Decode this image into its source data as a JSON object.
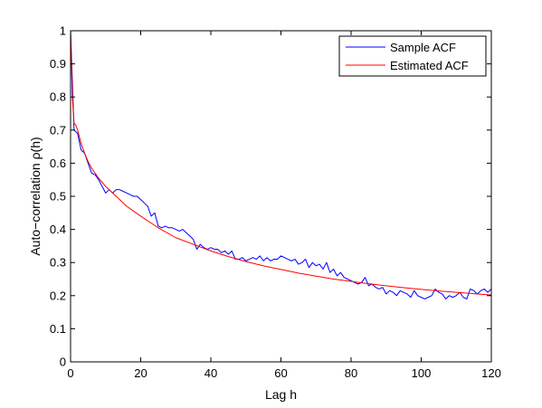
{
  "chart_data": {
    "type": "line",
    "title": "",
    "xlabel": "Lag h",
    "ylabel": "Auto−correlation ρ(h)",
    "xlim": [
      0,
      120
    ],
    "ylim": [
      0,
      1
    ],
    "xticks": [
      0,
      20,
      40,
      60,
      80,
      100,
      120
    ],
    "yticks": [
      0,
      0.1,
      0.2,
      0.3,
      0.4,
      0.5,
      0.6,
      0.7,
      0.8,
      0.9,
      1
    ],
    "xtick_labels": [
      "0",
      "20",
      "40",
      "60",
      "80",
      "100",
      "120"
    ],
    "ytick_labels": [
      "0",
      "0.1",
      "0.2",
      "0.3",
      "0.4",
      "0.5",
      "0.6",
      "0.7",
      "0.8",
      "0.9",
      "1"
    ],
    "grid": false,
    "legend_position": "top-right",
    "series": [
      {
        "name": "Sample ACF",
        "color": "#0000ff",
        "x": [
          0,
          1,
          2,
          3,
          4,
          5,
          6,
          7,
          8,
          9,
          10,
          11,
          12,
          13,
          14,
          15,
          16,
          17,
          18,
          19,
          20,
          21,
          22,
          23,
          24,
          25,
          26,
          27,
          28,
          29,
          30,
          31,
          32,
          33,
          34,
          35,
          36,
          37,
          38,
          39,
          40,
          41,
          42,
          43,
          44,
          45,
          46,
          47,
          48,
          49,
          50,
          51,
          52,
          53,
          54,
          55,
          56,
          57,
          58,
          59,
          60,
          61,
          62,
          63,
          64,
          65,
          66,
          67,
          68,
          69,
          70,
          71,
          72,
          73,
          74,
          75,
          76,
          77,
          78,
          79,
          80,
          81,
          82,
          83,
          84,
          85,
          86,
          87,
          88,
          89,
          90,
          91,
          92,
          93,
          94,
          95,
          96,
          97,
          98,
          99,
          100,
          101,
          102,
          103,
          104,
          105,
          106,
          107,
          108,
          109,
          110,
          111,
          112,
          113,
          114,
          115,
          116,
          117,
          118,
          119,
          120
        ],
        "values": [
          1,
          0.7,
          0.69,
          0.64,
          0.63,
          0.6,
          0.57,
          0.565,
          0.55,
          0.53,
          0.51,
          0.52,
          0.51,
          0.52,
          0.52,
          0.515,
          0.51,
          0.505,
          0.5,
          0.5,
          0.49,
          0.48,
          0.47,
          0.44,
          0.45,
          0.41,
          0.405,
          0.41,
          0.405,
          0.405,
          0.4,
          0.395,
          0.4,
          0.39,
          0.38,
          0.37,
          0.34,
          0.355,
          0.345,
          0.34,
          0.345,
          0.34,
          0.34,
          0.33,
          0.335,
          0.325,
          0.335,
          0.31,
          0.31,
          0.315,
          0.305,
          0.31,
          0.315,
          0.31,
          0.32,
          0.305,
          0.315,
          0.305,
          0.31,
          0.31,
          0.32,
          0.315,
          0.31,
          0.305,
          0.31,
          0.295,
          0.3,
          0.31,
          0.285,
          0.3,
          0.29,
          0.295,
          0.28,
          0.3,
          0.27,
          0.28,
          0.26,
          0.27,
          0.255,
          0.25,
          0.245,
          0.24,
          0.235,
          0.24,
          0.255,
          0.23,
          0.235,
          0.225,
          0.22,
          0.225,
          0.205,
          0.215,
          0.21,
          0.2,
          0.215,
          0.21,
          0.205,
          0.195,
          0.215,
          0.2,
          0.195,
          0.19,
          0.195,
          0.2,
          0.22,
          0.21,
          0.205,
          0.19,
          0.2,
          0.195,
          0.2,
          0.21,
          0.195,
          0.19,
          0.22,
          0.215,
          0.205,
          0.215,
          0.22,
          0.21,
          0.22
        ]
      },
      {
        "name": "Estimated ACF",
        "color": "#ff0000",
        "x": [
          0,
          0.5,
          1,
          1.5,
          2,
          3,
          4,
          5,
          6,
          8,
          10,
          12,
          14,
          16,
          18,
          20,
          25,
          30,
          35,
          40,
          45,
          50,
          55,
          60,
          65,
          70,
          75,
          80,
          85,
          90,
          95,
          100,
          105,
          110,
          115,
          120
        ],
        "values": [
          1,
          0.8,
          0.72,
          0.715,
          0.7,
          0.66,
          0.63,
          0.605,
          0.585,
          0.555,
          0.53,
          0.51,
          0.49,
          0.47,
          0.455,
          0.44,
          0.405,
          0.375,
          0.355,
          0.335,
          0.318,
          0.303,
          0.29,
          0.279,
          0.268,
          0.259,
          0.25,
          0.243,
          0.236,
          0.23,
          0.224,
          0.219,
          0.214,
          0.21,
          0.206,
          0.202
        ]
      }
    ]
  }
}
